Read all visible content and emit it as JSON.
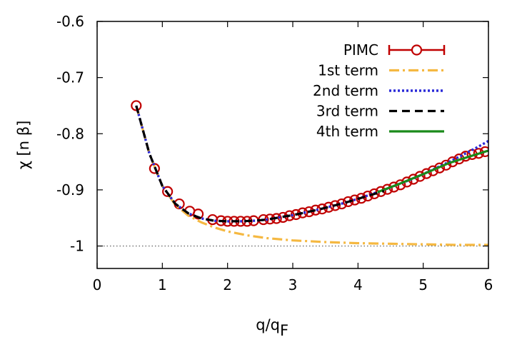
{
  "chart_data": {
    "type": "line",
    "xlabel": "q/q",
    "xlabel_sub": "F",
    "ylabel": "χ [n β]",
    "xlim": [
      0,
      6
    ],
    "ylim": [
      -1.04,
      -0.6
    ],
    "x_ticks": [
      0,
      1,
      2,
      3,
      4,
      5,
      6
    ],
    "x_tick_labels": [
      "0",
      "1",
      "2",
      "3",
      "4",
      "5",
      "6"
    ],
    "y_ticks": [
      -1,
      -0.9,
      -0.8,
      -0.7,
      -0.6
    ],
    "y_tick_labels": [
      "-1",
      "-0.9",
      "-0.8",
      "-0.7",
      "-0.6"
    ],
    "reference_line": {
      "y": -1,
      "style": "dotted",
      "color": "#555555"
    },
    "legend": {
      "position": "top-right",
      "entries": [
        "PIMC",
        "1st term",
        "2nd term",
        "3rd term",
        "4th term"
      ]
    },
    "series": [
      {
        "name": "PIMC",
        "style": "points-with-errorbars",
        "color": "#c00000",
        "x": [
          0.6,
          0.88,
          1.08,
          1.26,
          1.42,
          1.55,
          1.77,
          1.9,
          2.0,
          2.1,
          2.2,
          2.3,
          2.4,
          2.55,
          2.65,
          2.75,
          2.85,
          2.95,
          3.05,
          3.15,
          3.25,
          3.35,
          3.45,
          3.55,
          3.65,
          3.75,
          3.85,
          3.95,
          4.05,
          4.15,
          4.25,
          4.35,
          4.45,
          4.55,
          4.65,
          4.75,
          4.85,
          4.95,
          5.05,
          5.15,
          5.25,
          5.35,
          5.45,
          5.55,
          5.65,
          5.75,
          5.85,
          5.95
        ],
        "y": [
          -0.75,
          -0.862,
          -0.903,
          -0.925,
          -0.938,
          -0.943,
          -0.953,
          -0.955,
          -0.956,
          -0.956,
          -0.956,
          -0.956,
          -0.955,
          -0.953,
          -0.952,
          -0.951,
          -0.949,
          -0.946,
          -0.944,
          -0.941,
          -0.939,
          -0.936,
          -0.934,
          -0.931,
          -0.928,
          -0.925,
          -0.921,
          -0.918,
          -0.915,
          -0.911,
          -0.907,
          -0.903,
          -0.899,
          -0.895,
          -0.891,
          -0.886,
          -0.881,
          -0.876,
          -0.871,
          -0.866,
          -0.861,
          -0.856,
          -0.85,
          -0.845,
          -0.84,
          -0.837,
          -0.835,
          -0.832
        ]
      },
      {
        "name": "1st term",
        "style": "dash-dot",
        "color": "#f5b841",
        "x": [
          0.6,
          0.8,
          1.0,
          1.2,
          1.4,
          1.6,
          1.8,
          2.0,
          2.3,
          2.6,
          3.0,
          3.5,
          4.0,
          4.5,
          5.0,
          5.5,
          6.0
        ],
        "y": [
          -0.75,
          -0.835,
          -0.893,
          -0.927,
          -0.946,
          -0.958,
          -0.967,
          -0.974,
          -0.981,
          -0.986,
          -0.99,
          -0.993,
          -0.995,
          -0.996,
          -0.997,
          -0.998,
          -0.998
        ]
      },
      {
        "name": "2nd term",
        "style": "dotted",
        "color": "#2a2ad8",
        "x": [
          0.6,
          0.8,
          1.0,
          1.2,
          1.4,
          1.6,
          1.8,
          2.0,
          2.2,
          2.4,
          2.6,
          2.8,
          3.0,
          3.2,
          3.4,
          3.6,
          3.8,
          4.0,
          4.2,
          4.4,
          4.6,
          4.8,
          5.0,
          5.2,
          5.4,
          5.6,
          5.8,
          6.0
        ],
        "y": [
          -0.75,
          -0.835,
          -0.893,
          -0.925,
          -0.942,
          -0.951,
          -0.955,
          -0.956,
          -0.956,
          -0.955,
          -0.953,
          -0.949,
          -0.945,
          -0.94,
          -0.935,
          -0.929,
          -0.923,
          -0.916,
          -0.908,
          -0.9,
          -0.891,
          -0.882,
          -0.872,
          -0.861,
          -0.85,
          -0.838,
          -0.826,
          -0.813
        ]
      },
      {
        "name": "3rd term",
        "style": "dashed",
        "color": "#000000",
        "x": [
          0.6,
          0.8,
          1.0,
          1.2,
          1.4,
          1.6,
          1.8,
          2.0,
          2.2,
          2.4,
          2.6,
          2.8,
          3.0,
          3.2,
          3.4,
          3.6,
          3.8,
          4.0,
          4.2,
          4.4
        ],
        "y": [
          -0.75,
          -0.835,
          -0.893,
          -0.925,
          -0.942,
          -0.951,
          -0.955,
          -0.956,
          -0.956,
          -0.955,
          -0.953,
          -0.949,
          -0.945,
          -0.94,
          -0.935,
          -0.929,
          -0.923,
          -0.916,
          -0.909,
          -0.902
        ]
      },
      {
        "name": "4th term",
        "style": "solid",
        "color": "#1a8a1a",
        "x": [
          4.3,
          4.6,
          5.0,
          5.4,
          5.7,
          6.0
        ],
        "y": [
          -0.904,
          -0.891,
          -0.872,
          -0.852,
          -0.841,
          -0.83
        ]
      }
    ]
  }
}
